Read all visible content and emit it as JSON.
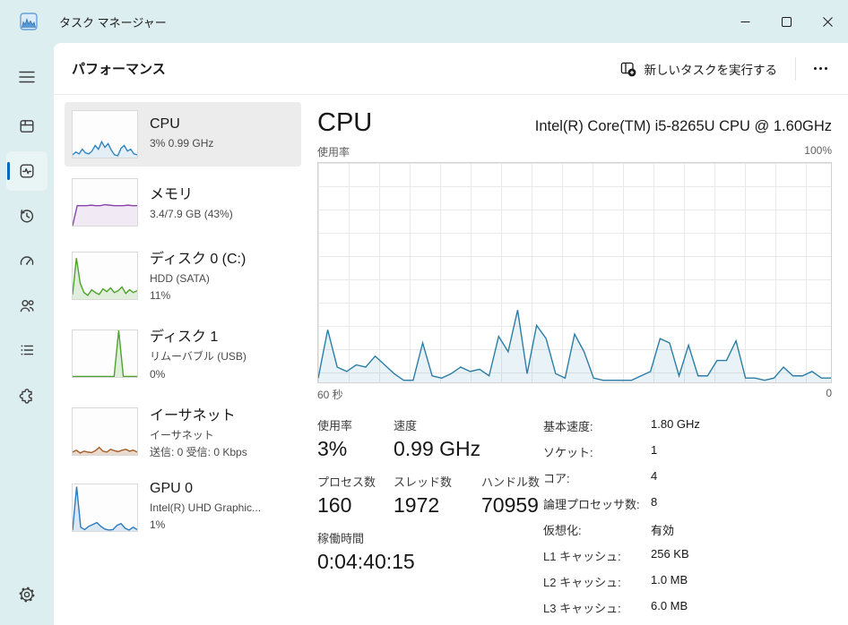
{
  "titlebar": {
    "app_title": "タスク マネージャー"
  },
  "header": {
    "title": "パフォーマンス",
    "run_new_task_label": "新しいタスクを実行する"
  },
  "sidebar": {
    "accent_color": "#0067c0",
    "items": [
      {
        "id": "processes",
        "icon": "processes-icon"
      },
      {
        "id": "performance",
        "icon": "performance-icon",
        "selected": true
      },
      {
        "id": "app-history",
        "icon": "history-icon"
      },
      {
        "id": "startup-apps",
        "icon": "gauge-icon"
      },
      {
        "id": "users",
        "icon": "users-icon"
      },
      {
        "id": "details",
        "icon": "details-list-icon"
      },
      {
        "id": "services",
        "icon": "puzzle-icon"
      },
      {
        "id": "settings",
        "icon": "gear-icon"
      }
    ]
  },
  "performance_list": [
    {
      "id": "cpu",
      "title": "CPU",
      "subtitle_lines": [
        "3%  0.99 GHz"
      ],
      "selected": true
    },
    {
      "id": "memory",
      "title": "メモリ",
      "subtitle_lines": [
        "3.4/7.9 GB (43%)"
      ]
    },
    {
      "id": "disk0",
      "title": "ディスク 0 (C:)",
      "subtitle_lines": [
        "HDD (SATA)",
        "11%"
      ]
    },
    {
      "id": "disk1",
      "title": "ディスク 1",
      "subtitle_lines": [
        "リムーバブル (USB)",
        "0%"
      ]
    },
    {
      "id": "ethernet",
      "title": "イーサネット",
      "subtitle_lines": [
        "イーサネット",
        "送信: 0 受信: 0 Kbps"
      ]
    },
    {
      "id": "gpu0",
      "title": "GPU 0",
      "subtitle_lines": [
        "Intel(R) UHD Graphic...",
        "1%"
      ]
    }
  ],
  "cpu_detail": {
    "title": "CPU",
    "processor": "Intel(R) Core(TM) i5-8265U CPU @ 1.60GHz",
    "chart_top_left": "使用率",
    "chart_top_right": "100%",
    "chart_bottom_left": "60 秒",
    "chart_bottom_right": "0",
    "stats": {
      "usage_label": "使用率",
      "usage_value": "3%",
      "speed_label": "速度",
      "speed_value": "0.99 GHz",
      "processes_label": "プロセス数",
      "processes_value": "160",
      "threads_label": "スレッド数",
      "threads_value": "1972",
      "handles_label": "ハンドル数",
      "handles_value": "70959",
      "uptime_label": "稼働時間",
      "uptime_value": "0:04:40:15"
    },
    "specs": [
      {
        "label": "基本速度:",
        "value": "1.80 GHz"
      },
      {
        "label": "ソケット:",
        "value": "1"
      },
      {
        "label": "コア:",
        "value": "4"
      },
      {
        "label": "論理プロセッサ数:",
        "value": "8"
      },
      {
        "label": "仮想化:",
        "value": "有効"
      },
      {
        "label": "L1 キャッシュ:",
        "value": "256 KB"
      },
      {
        "label": "L2 キャッシュ:",
        "value": "1.0 MB"
      },
      {
        "label": "L3 キャッシュ:",
        "value": "6.0 MB"
      }
    ]
  },
  "chart_data": {
    "type": "area",
    "title": "CPU 使用率の履歴 (% 使用率, 直近 60 秒)",
    "x_range_seconds": [
      60,
      0
    ],
    "y_range_percent": [
      0,
      100
    ],
    "grid": true,
    "main": {
      "color": "#2c7ea6",
      "fill": "rgba(44,126,166,0.10)",
      "max": 100,
      "values": [
        2,
        24,
        7,
        5,
        8,
        7,
        12,
        8,
        4,
        1,
        1,
        18,
        3,
        2,
        4,
        7,
        5,
        6,
        3,
        21,
        14,
        33,
        4,
        26,
        20,
        4,
        2,
        22,
        14,
        2,
        1,
        1,
        1,
        1,
        3,
        5,
        20,
        18,
        3,
        17,
        3,
        3,
        10,
        10,
        19,
        2,
        2,
        1,
        2,
        7,
        3,
        3,
        5,
        2,
        2
      ]
    },
    "mini": {
      "cpu": {
        "color": "#2f86c2",
        "fill": "rgba(47,134,194,0.12)",
        "max": 100,
        "values": [
          6,
          12,
          8,
          18,
          10,
          8,
          14,
          26,
          18,
          34,
          22,
          30,
          16,
          6,
          4,
          20,
          26,
          14,
          18,
          8,
          6
        ]
      },
      "memory": {
        "color": "#8b44a8",
        "fill": "rgba(139,68,168,0.10)",
        "max": 100,
        "values": [
          0,
          43,
          43,
          43,
          44,
          43,
          43,
          45,
          44,
          43,
          43,
          43,
          44,
          43,
          43
        ]
      },
      "disk0": {
        "color": "#4da32c",
        "fill": "rgba(77,163,44,0.16)",
        "max": 100,
        "values": [
          10,
          88,
          34,
          14,
          8,
          20,
          14,
          10,
          22,
          16,
          24,
          14,
          18,
          26,
          12,
          20,
          14,
          18
        ]
      },
      "disk1": {
        "color": "#4da32c",
        "fill": "rgba(77,163,44,0.16)",
        "max": 100,
        "values": [
          1,
          1,
          1,
          1,
          1,
          1,
          1,
          1,
          1,
          1,
          100,
          1,
          1,
          1,
          1
        ]
      },
      "ethernet": {
        "color": "#a35f2b",
        "fill": "rgba(163,95,43,0.22)",
        "max": 100,
        "values": [
          6,
          10,
          4,
          8,
          6,
          5,
          9,
          16,
          8,
          6,
          12,
          9,
          7,
          10,
          12,
          8,
          10,
          6
        ]
      },
      "gpu0": {
        "color": "#2b7bc0",
        "fill": "rgba(43,123,192,0.16)",
        "max": 100,
        "values": [
          2,
          95,
          8,
          3,
          10,
          14,
          18,
          10,
          4,
          2,
          3,
          12,
          16,
          6,
          2,
          8,
          3
        ]
      }
    }
  }
}
